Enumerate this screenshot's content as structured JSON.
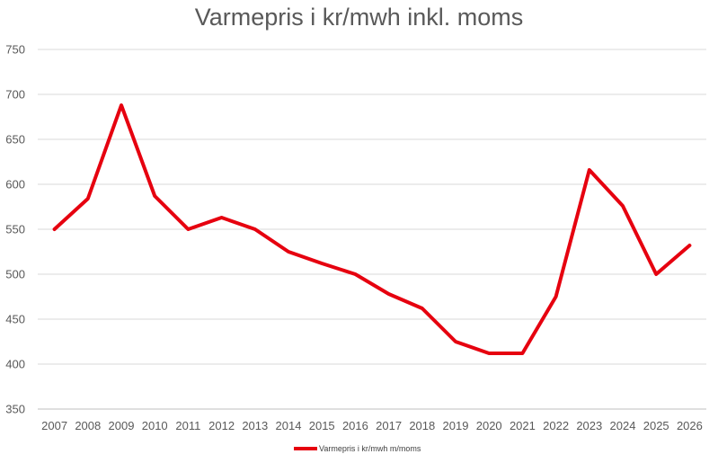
{
  "chart_data": {
    "type": "line",
    "title": "Varmepris i kr/mwh inkl. moms",
    "xlabel": "",
    "ylabel": "",
    "ylim": [
      350,
      750
    ],
    "yticks": [
      350,
      400,
      450,
      500,
      550,
      600,
      650,
      700,
      750
    ],
    "grid": true,
    "legend_position": "bottom",
    "categories": [
      "2007",
      "2008",
      "2009",
      "2010",
      "2011",
      "2012",
      "2013",
      "2014",
      "2015",
      "2016",
      "2017",
      "2018",
      "2019",
      "2020",
      "2021",
      "2022",
      "2023",
      "2024",
      "2025",
      "2026"
    ],
    "series": [
      {
        "name": "Varmepris i kr/mwh m/moms",
        "color": "#e6000f",
        "values": [
          550,
          584,
          688,
          587,
          550,
          563,
          550,
          525,
          512,
          500,
          478,
          462,
          425,
          412,
          412,
          475,
          616,
          576,
          500,
          532
        ]
      }
    ]
  }
}
